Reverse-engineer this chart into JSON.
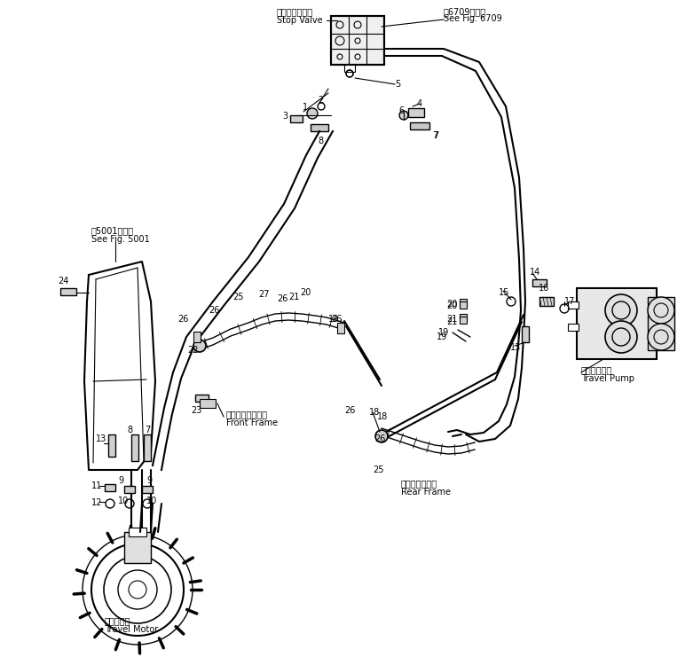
{
  "background_color": "#ffffff",
  "line_color": "#000000",
  "text_color": "#000000",
  "labels": {
    "stop_valve_jp": "ストップバルブ",
    "stop_valve_en": "Stop Valve",
    "see_fig_jp": "第6709図参照",
    "see_fig_en": "See Fig. 6709",
    "see_fig2_jp": "第5001図参照",
    "see_fig2_en": "See Fig. 5001",
    "front_frame_jp": "フロントフレーム",
    "front_frame_en": "Front Frame",
    "rear_frame_jp": "リヤーフレーム",
    "rear_frame_en": "Rear Frame",
    "travel_motor_jp": "走行モータ",
    "travel_motor_en": "Travel Motor",
    "travel_pump_jp": "走行　ポンプ",
    "travel_pump_en": "Travel Pump"
  },
  "figsize": [
    7.81,
    7.5
  ],
  "dpi": 100
}
